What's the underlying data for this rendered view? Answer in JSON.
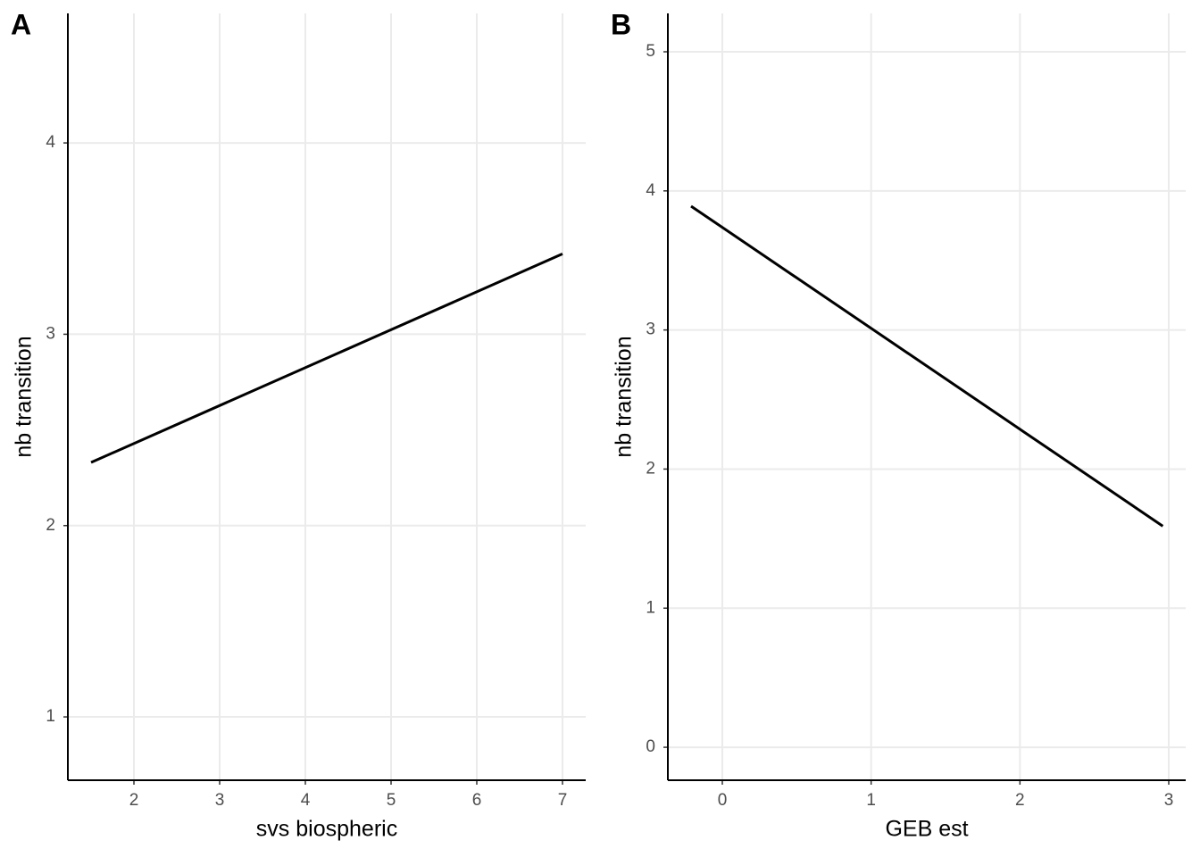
{
  "chart_data": [
    {
      "type": "line",
      "panel_label": "A",
      "x_label": "svs biospheric",
      "y_label": "nb transition",
      "x": [
        1.5,
        7
      ],
      "series": [
        {
          "color": "#000000",
          "values": [
            2.33,
            3.42
          ]
        }
      ],
      "xlim": [
        1.229,
        7.271
      ],
      "xticks": [
        2,
        3,
        4,
        5,
        6,
        7
      ],
      "ylim": [
        0.669,
        4.677
      ],
      "yticks": [
        1,
        2,
        3,
        4
      ],
      "grid": true
    },
    {
      "type": "line",
      "panel_label": "B",
      "x_label": "GEB est",
      "y_label": "nb transition",
      "x": [
        -0.21,
        2.96
      ],
      "series": [
        {
          "color": "#000000",
          "values": [
            3.89,
            1.59
          ]
        }
      ],
      "xlim": [
        -0.366,
        3.114
      ],
      "xticks": [
        0,
        1,
        2,
        3
      ],
      "ylim": [
        -0.237,
        5.276
      ],
      "yticks": [
        0,
        1,
        2,
        3,
        4,
        5
      ],
      "grid": true
    }
  ]
}
